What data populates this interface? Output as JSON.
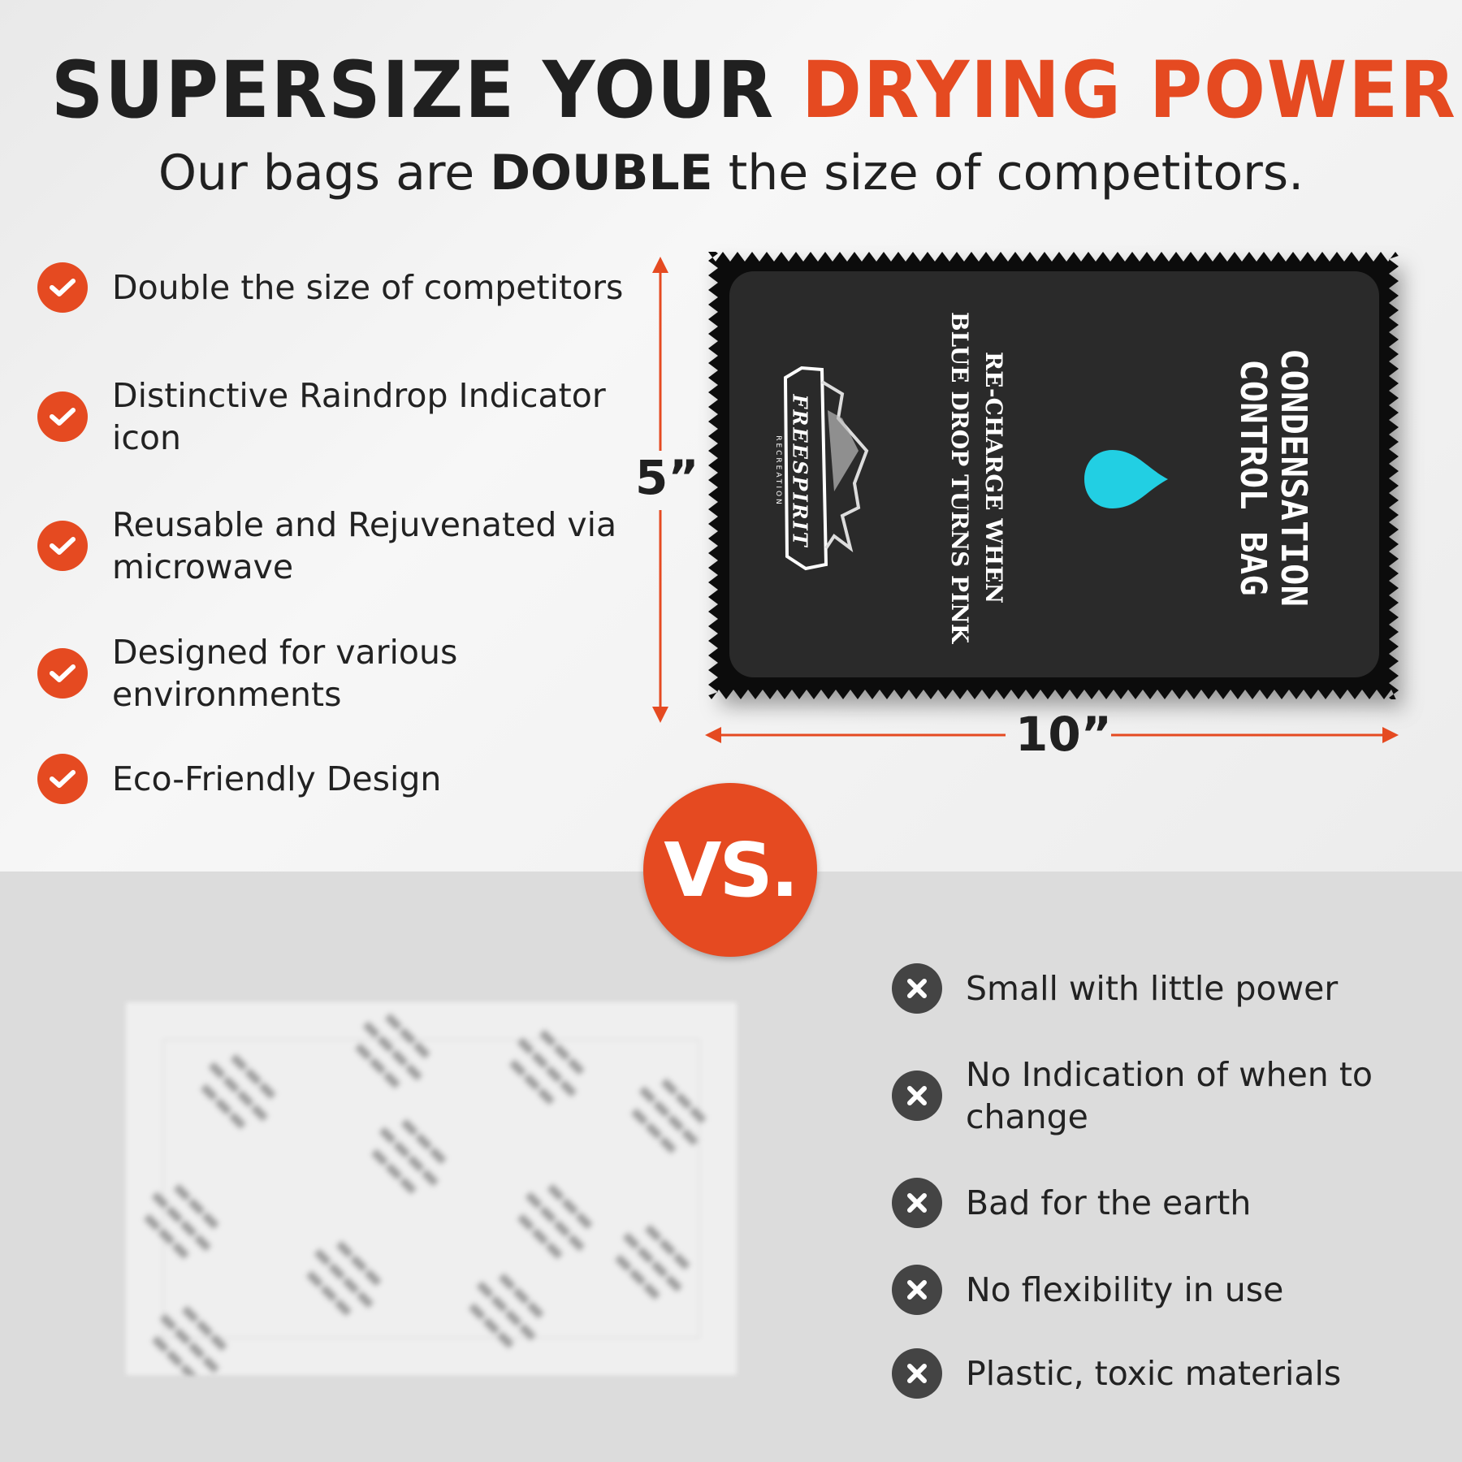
{
  "headline": {
    "part1": "SUPERSIZE YOUR ",
    "part2": "DRYING POWER"
  },
  "subtitle": {
    "pre": "Our bags are ",
    "bold": "DOUBLE",
    "post": " the size of competitors."
  },
  "pros": [
    {
      "icon": "check-icon",
      "text": "Double the size of competitors"
    },
    {
      "icon": "check-icon",
      "text": "Distinctive Raindrop Indicator icon"
    },
    {
      "icon": "check-icon",
      "text": "Reusable and Rejuvenated via microwave"
    },
    {
      "icon": "check-icon",
      "text": "Designed for various environments"
    },
    {
      "icon": "check-icon",
      "text": "Eco-Friendly Design"
    }
  ],
  "cons": [
    {
      "icon": "x-icon",
      "text": "Small with little power"
    },
    {
      "icon": "x-icon",
      "text": "No Indication of when to change"
    },
    {
      "icon": "x-icon",
      "text": "Bad for the earth"
    },
    {
      "icon": "x-icon",
      "text": "No flexibility in use"
    },
    {
      "icon": "x-icon",
      "text": "Plastic, toxic materials"
    }
  ],
  "vs_label": "VS.",
  "dimensions": {
    "height": "5”",
    "width": "10”"
  },
  "bag": {
    "title_line1": "CONDENSATION",
    "title_line2": "CONTROL BAG",
    "instruction_line1": "RE-CHARGE WHEN",
    "instruction_line2": "BLUE DROP TURNS PINK",
    "brand": "FREESPIRIT",
    "brand_sub": "RECREATION"
  },
  "colors": {
    "accent": "#e54a21",
    "dark": "#202020",
    "drop": "#22cfe3",
    "con_icon": "#444444"
  }
}
